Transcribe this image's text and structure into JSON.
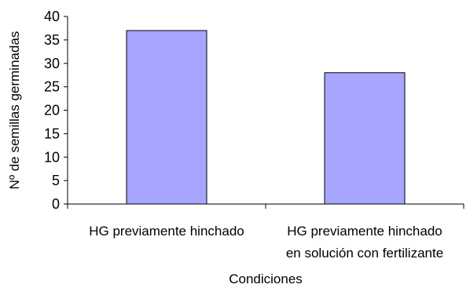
{
  "chart_data": {
    "type": "bar",
    "categories": [
      [
        "HG previamente hinchado"
      ],
      [
        "HG previamente hinchado",
        "en solución con fertilizante"
      ]
    ],
    "values": [
      37,
      28
    ],
    "xlabel": "Condiciones",
    "ylabel": "Nº de semillas germinadas",
    "ylim": [
      0,
      40
    ],
    "yticks": [
      0,
      5,
      10,
      15,
      20,
      25,
      30,
      35,
      40
    ],
    "grid": false,
    "legend": "none",
    "bar_color": "#a6a6ff",
    "bar_edge_color": "#000000"
  }
}
